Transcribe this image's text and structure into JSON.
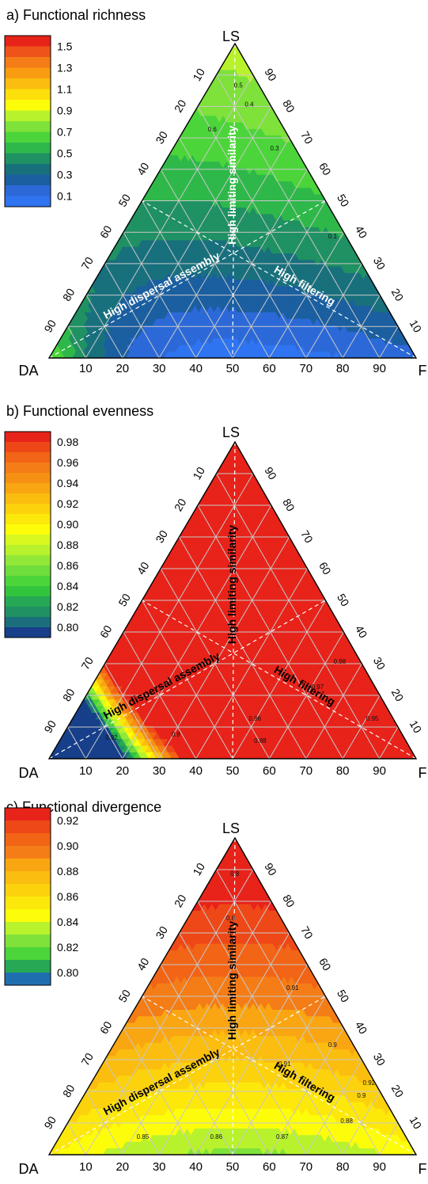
{
  "chart_data": [
    {
      "type": "heatmap",
      "subtype": "ternary-contour",
      "title": "a) Functional richness",
      "vertices": {
        "top": "LS",
        "left": "DA",
        "right": "F"
      },
      "axis_ticks": [
        10,
        20,
        30,
        40,
        50,
        60,
        70,
        80,
        90
      ],
      "bottom_ticks": [
        "10",
        "20",
        "30",
        "40",
        "50",
        "60",
        "70",
        "80",
        "90"
      ],
      "left_ticks": [
        "10",
        "20",
        "30",
        "40",
        "50",
        "60",
        "70",
        "80",
        "90"
      ],
      "right_ticks": [
        "90",
        "80",
        "70",
        "60",
        "50",
        "40",
        "30",
        "20",
        "10"
      ],
      "grid": true,
      "region_labels": [
        "High limiting similarity",
        "High dispersal assembly",
        "High filtering"
      ],
      "region_label_color": "#ffffff",
      "legend": {
        "placement": "top-left",
        "levels": [
          1.6,
          1.5,
          1.4,
          1.3,
          1.2,
          1.1,
          1.0,
          0.9,
          0.8,
          0.7,
          0.6,
          0.5,
          0.4,
          0.3,
          0.2,
          0.1,
          0.0
        ],
        "labels": [
          "1.5",
          "1.3",
          "1.1",
          "0.9",
          "0.7",
          "0.5",
          "0.3",
          "0.1"
        ],
        "colors": [
          "#e8231a",
          "#ee5419",
          "#f47d17",
          "#f99c12",
          "#fbbd0f",
          "#fddf0b",
          "#fdfd0a",
          "#b8f22c",
          "#7ee23a",
          "#4cd53a",
          "#2fb84a",
          "#1f9162",
          "#19707d",
          "#1b5fa0",
          "#2c69d8",
          "#2f74f0"
        ]
      },
      "contour_labels": [
        "0.5",
        "0.4",
        "0.3",
        "0.6",
        "0.1"
      ],
      "field": {
        "base": 0.05,
        "comps": [
          [
            0.8,
            -0.2,
            0.3
          ],
          [
            0.7,
            -0.15,
            0.12
          ]
        ]
      }
    },
    {
      "type": "heatmap",
      "subtype": "ternary-contour",
      "title": "b) Functional evenness",
      "vertices": {
        "top": "LS",
        "left": "DA",
        "right": "F"
      },
      "axis_ticks": [
        10,
        20,
        30,
        40,
        50,
        60,
        70,
        80,
        90
      ],
      "bottom_ticks": [
        "10",
        "20",
        "30",
        "40",
        "50",
        "60",
        "70",
        "80",
        "90"
      ],
      "left_ticks": [
        "10",
        "20",
        "30",
        "40",
        "50",
        "60",
        "70",
        "80",
        "90"
      ],
      "right_ticks": [
        "90",
        "80",
        "70",
        "60",
        "50",
        "40",
        "30",
        "20",
        "10"
      ],
      "grid": true,
      "region_labels": [
        "High limiting similarity",
        "High dispersal assembly",
        "High filtering"
      ],
      "region_label_color": "#000000",
      "legend": {
        "placement": "top-left",
        "levels": [
          0.99,
          0.98,
          0.97,
          0.96,
          0.95,
          0.94,
          0.93,
          0.92,
          0.91,
          0.9,
          0.89,
          0.88,
          0.87,
          0.86,
          0.85,
          0.84,
          0.83,
          0.82,
          0.81,
          0.8,
          0.79
        ],
        "labels": [
          "0.98",
          "0.96",
          "0.94",
          "0.92",
          "0.90",
          "0.88",
          "0.86",
          "0.84",
          "0.82",
          "0.80"
        ],
        "colors": [
          "#e8231a",
          "#ee4818",
          "#f26416",
          "#f47d17",
          "#f69014",
          "#f9a612",
          "#fbbd0f",
          "#fcd20d",
          "#fde80b",
          "#fdfd0a",
          "#d8f820",
          "#b8f22c",
          "#92e838",
          "#6fdd3c",
          "#4cd53a",
          "#33c43e",
          "#26a854",
          "#1f9162",
          "#1b6f7d",
          "#173f8a"
        ]
      },
      "contour_labels": [
        "0.98",
        "0.97",
        "0.96",
        "0.95",
        "0.9",
        "0.92",
        "0.88"
      ],
      "field": {
        "base": 0.968,
        "comps": [
          [
            0.02,
            0.3,
            0.6
          ],
          [
            -0.95,
            0.0,
            0.014
          ]
        ]
      }
    },
    {
      "type": "heatmap",
      "subtype": "ternary-contour",
      "title": "c) Functional divergence",
      "vertices": {
        "top": "LS",
        "left": "DA",
        "right": "F"
      },
      "axis_ticks": [
        10,
        20,
        30,
        40,
        50,
        60,
        70,
        80,
        90
      ],
      "bottom_ticks": [
        "10",
        "20",
        "30",
        "40",
        "50",
        "60",
        "70",
        "80",
        "90"
      ],
      "left_ticks": [
        "10",
        "20",
        "30",
        "40",
        "50",
        "60",
        "70",
        "80",
        "90"
      ],
      "right_ticks": [
        "90",
        "80",
        "70",
        "60",
        "50",
        "40",
        "30",
        "20",
        "10"
      ],
      "grid": true,
      "region_labels": [
        "High limiting similarity",
        "High dispersal assembly",
        "High filtering"
      ],
      "region_label_color": "#000000",
      "legend": {
        "placement": "top-left",
        "levels": [
          0.93,
          0.92,
          0.91,
          0.9,
          0.89,
          0.88,
          0.87,
          0.86,
          0.85,
          0.84,
          0.83,
          0.82,
          0.81,
          0.8,
          0.79
        ],
        "labels": [
          "0.92",
          "0.90",
          "0.88",
          "0.86",
          "0.84",
          "0.82",
          "0.80"
        ],
        "colors": [
          "#e8231a",
          "#ee4818",
          "#f26416",
          "#f47d17",
          "#f9a612",
          "#fbbd0f",
          "#fcd20d",
          "#fde80b",
          "#fdfd0a",
          "#b8f22c",
          "#7ee23a",
          "#4cd53a",
          "#26a854",
          "#1f6fb0"
        ]
      },
      "contour_labels": [
        "0.8",
        "0.8",
        "0.91",
        "0.9",
        "0.91",
        "0.92",
        "0.9",
        "0.88",
        "0.87",
        "0.86",
        "0.85"
      ],
      "field": {
        "base": 0.845,
        "comps": [
          [
            0.09,
            -0.07,
            0.03
          ],
          [
            0.006,
            0.0,
            0.0
          ]
        ]
      }
    }
  ]
}
